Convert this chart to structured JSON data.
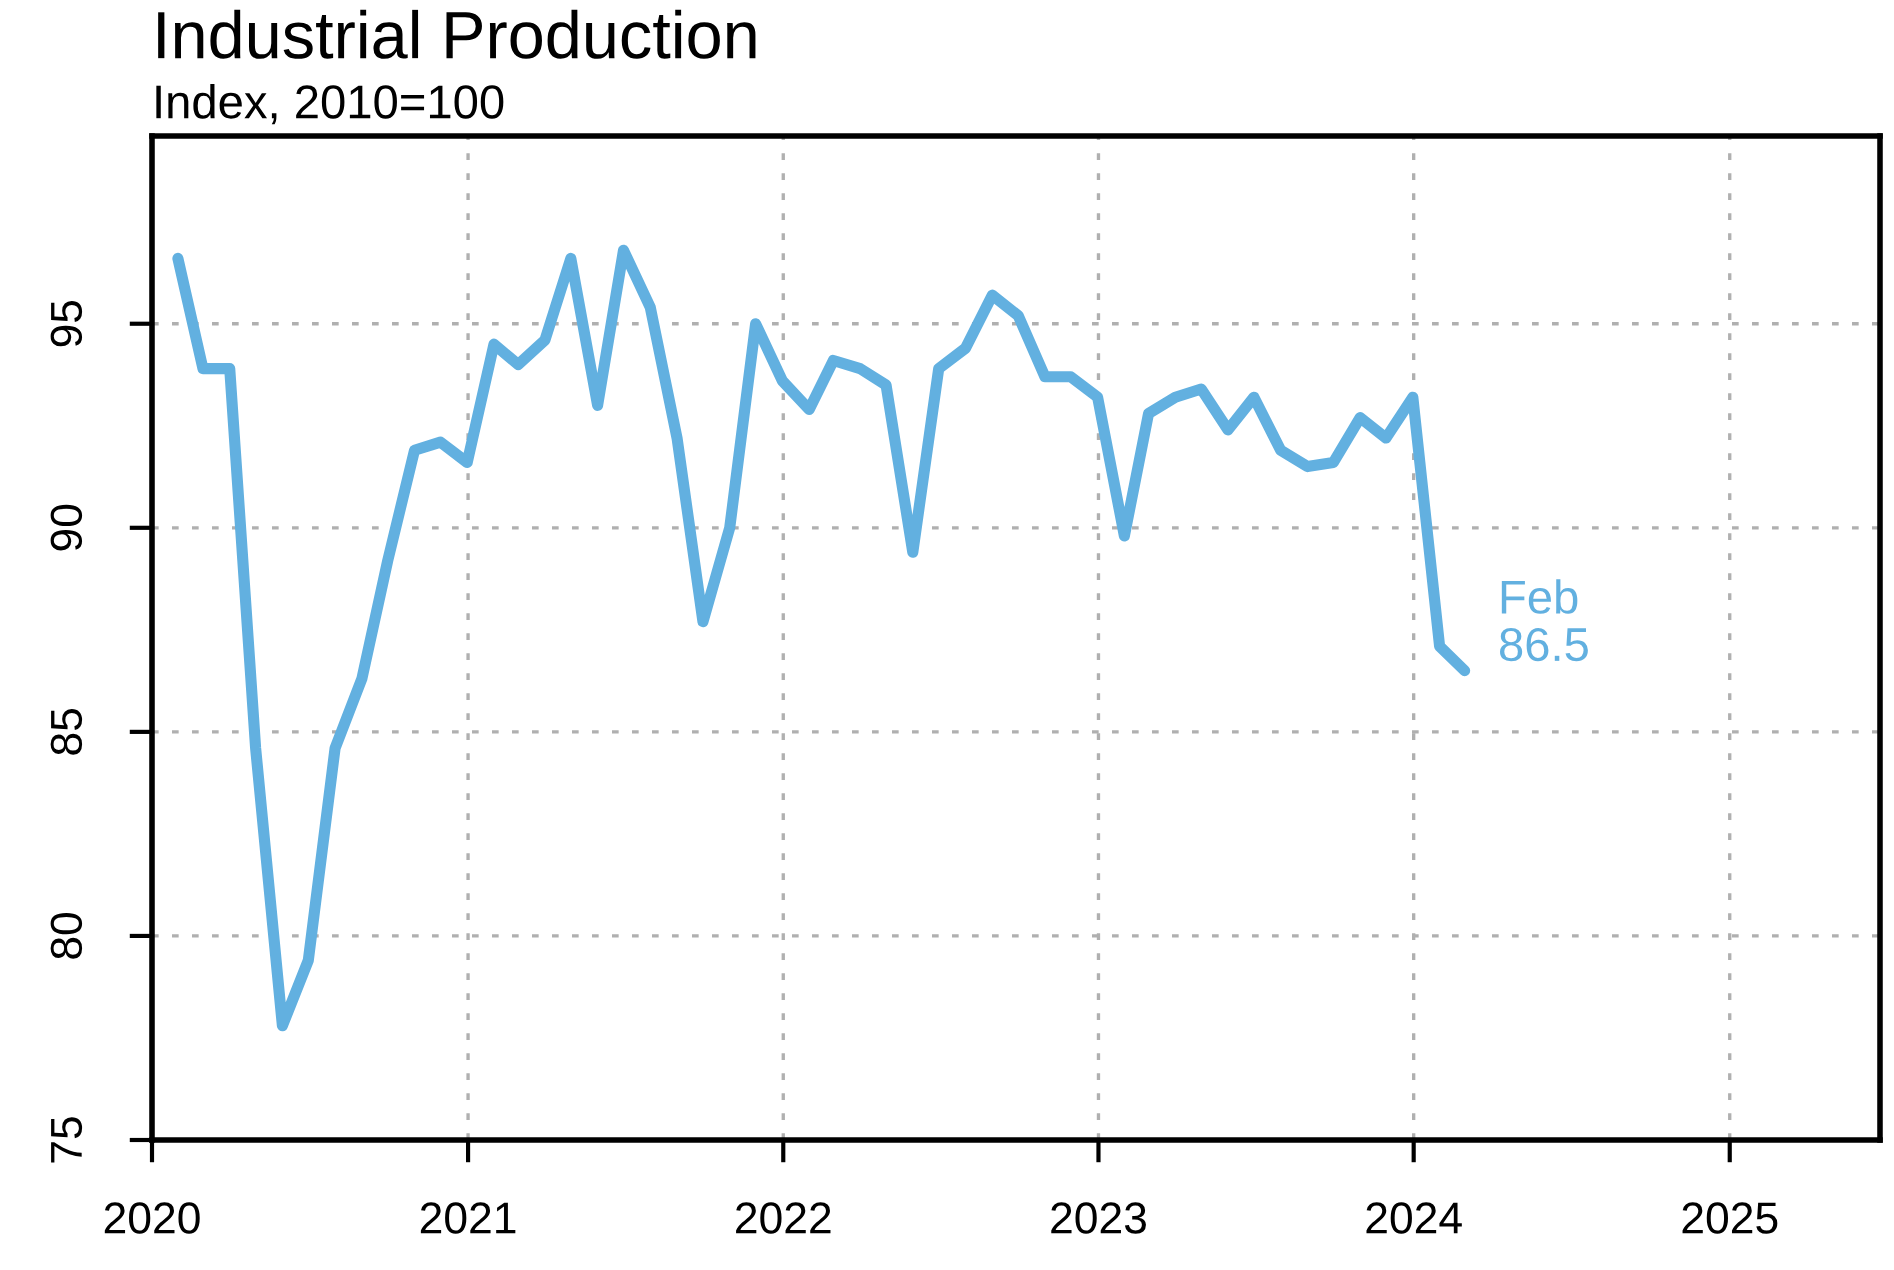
{
  "chart_data": {
    "type": "line",
    "title": "Industrial Production",
    "subtitle": "Index, 2010=100",
    "x": [
      "2020-01-31",
      "2020-02-29",
      "2020-03-31",
      "2020-04-30",
      "2020-05-31",
      "2020-06-30",
      "2020-07-31",
      "2020-08-31",
      "2020-09-30",
      "2020-10-31",
      "2020-11-30",
      "2020-12-31",
      "2021-01-31",
      "2021-02-28",
      "2021-03-31",
      "2021-04-30",
      "2021-05-31",
      "2021-06-30",
      "2021-07-31",
      "2021-08-31",
      "2021-09-30",
      "2021-10-31",
      "2021-11-30",
      "2021-12-31",
      "2022-01-31",
      "2022-02-28",
      "2022-03-31",
      "2022-04-30",
      "2022-05-31",
      "2022-06-30",
      "2022-07-31",
      "2022-08-31",
      "2022-09-30",
      "2022-10-31",
      "2022-11-30",
      "2022-12-31",
      "2023-01-31",
      "2023-02-28",
      "2023-03-31",
      "2023-04-30",
      "2023-05-31",
      "2023-06-30",
      "2023-07-31",
      "2023-08-31",
      "2023-09-30",
      "2023-10-31",
      "2023-11-30",
      "2023-12-31",
      "2024-01-31",
      "2024-02-29"
    ],
    "series": [
      {
        "color": "#62b0e0",
        "values": [
          96.6,
          93.9,
          93.9,
          84.6,
          77.8,
          79.4,
          84.6,
          86.3,
          89.2,
          91.9,
          92.1,
          91.6,
          94.5,
          94.0,
          94.6,
          96.6,
          93.0,
          96.8,
          95.4,
          92.2,
          87.7,
          90.0,
          95.0,
          93.6,
          92.9,
          94.1,
          93.9,
          93.5,
          89.4,
          93.9,
          94.4,
          95.7,
          95.2,
          93.7,
          93.7,
          93.2,
          89.8,
          92.8,
          93.2,
          93.4,
          92.4,
          93.2,
          91.9,
          91.5,
          91.6,
          92.7,
          92.2,
          93.2,
          87.1,
          86.5
        ]
      }
    ],
    "annotations": [
      {
        "text": "Feb\n86.5",
        "x": "2024-02-29",
        "y": 86.5
      }
    ],
    "xlim": [
      "2020-01-01",
      "2025-06-24"
    ],
    "xticks": [
      {
        "value": "2020-01-01",
        "label": "2020"
      },
      {
        "value": "2021-01-01",
        "label": "2021"
      },
      {
        "value": "2022-01-01",
        "label": "2022"
      },
      {
        "value": "2023-01-01",
        "label": "2023"
      },
      {
        "value": "2024-01-01",
        "label": "2024"
      },
      {
        "value": "2025-01-01",
        "label": "2025"
      }
    ],
    "ylim": [
      75,
      99.6
    ],
    "yticks": [
      75,
      80,
      85,
      90,
      95
    ],
    "grid": true,
    "legend": false,
    "marker": "none",
    "line_style": "solid"
  }
}
